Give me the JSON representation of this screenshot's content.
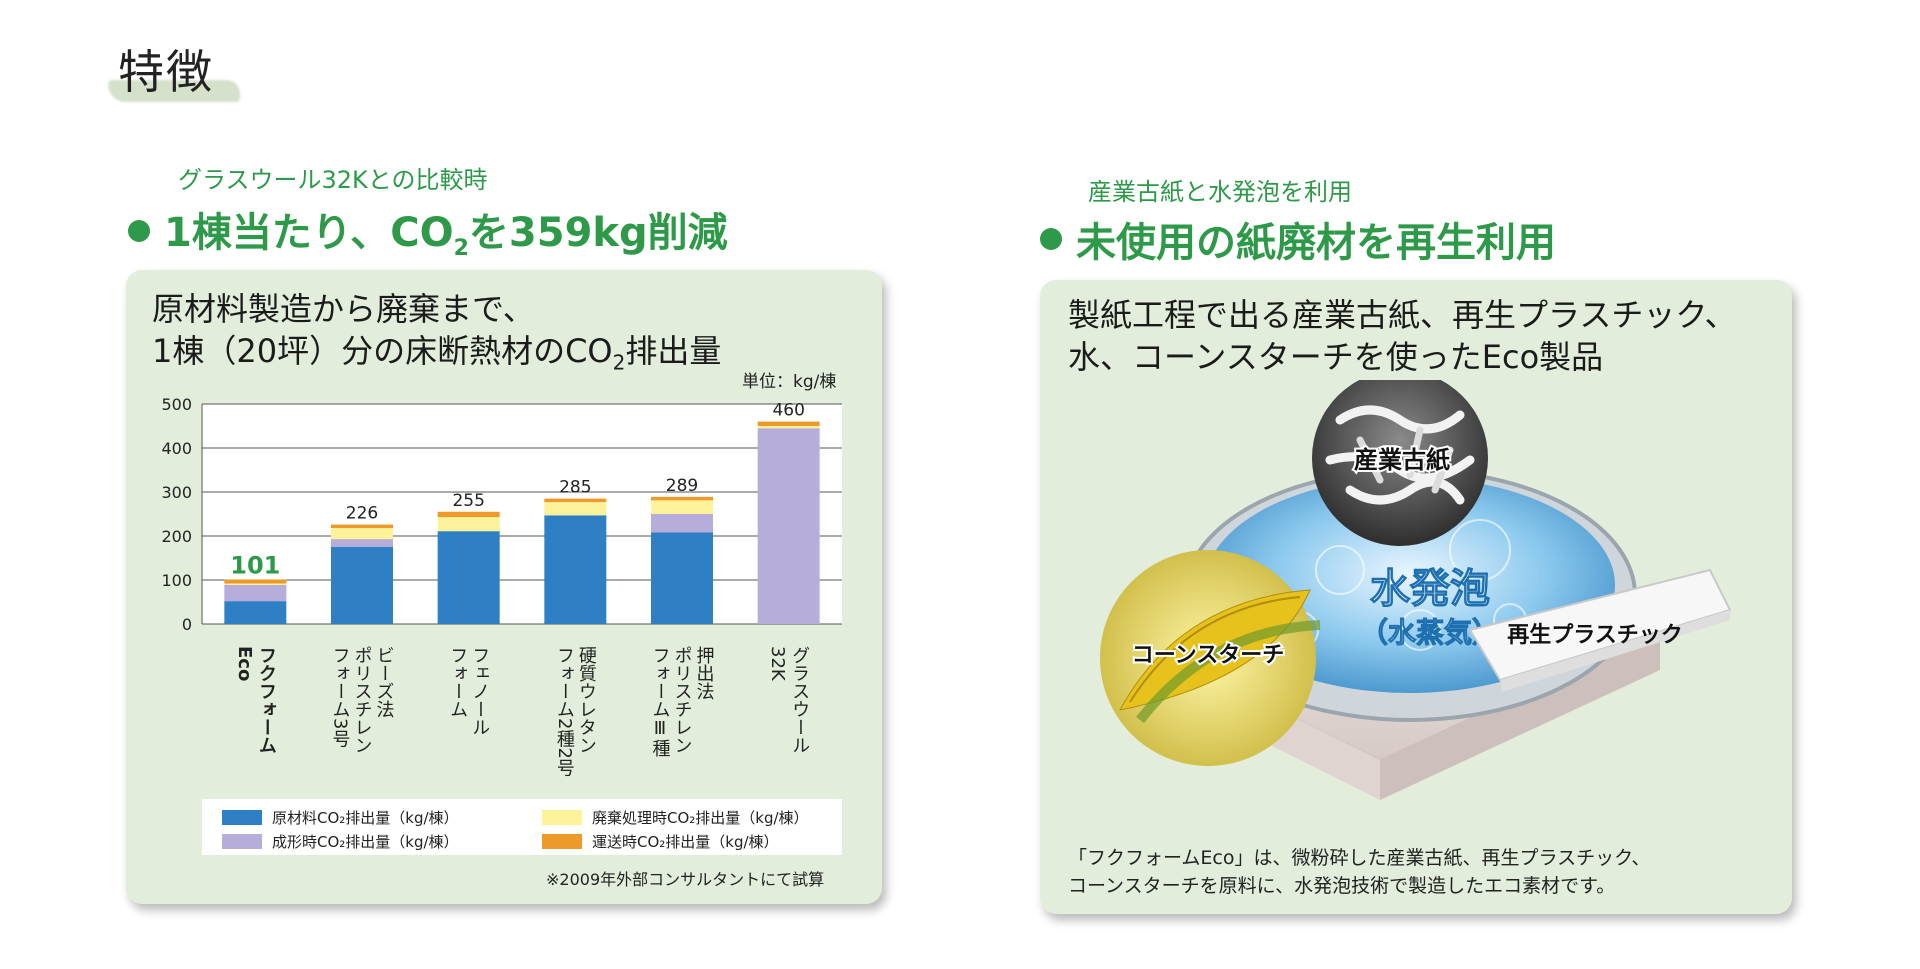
{
  "page_title": "特徴",
  "left": {
    "subhead": "グラスウール32Kとの比較時",
    "headline_pre": "1棟当たり、CO",
    "headline_sub": "2",
    "headline_post": "を359kg削減",
    "panel_line1": "原材料製造から廃棄まで、",
    "panel_line2_pre": "1棟（20坪）分の床断熱材のCO",
    "panel_line2_sub": "2",
    "panel_line2_post": "排出量",
    "unit": "単位：kg/棟",
    "note": "※2009年外部コンサルタントにて試算"
  },
  "right": {
    "subhead": "産業古紙と水発泡を利用",
    "headline": "未使用の紙廃材を再生利用",
    "panel_line1": "製紙工程で出る産業古紙、再生プラスチック、",
    "panel_line2": "水、コーンスターチを使ったEco製品",
    "label_paper": "産業古紙",
    "label_water": "水発泡",
    "label_steam": "（水蒸気）",
    "label_corn": "コーンスターチ",
    "label_plastic": "再生プラスチック",
    "footer_line1": "「フクフォームEco」は、微粉砕した産業古紙、再生プラスチック、",
    "footer_line2": "コーンスターチを原料に、水発泡技術で製造したエコ素材です。"
  },
  "colors": {
    "brand_green": "#2e9a49",
    "panel_bg": "#e2eedb",
    "raw": "#2f7fc4",
    "molding": "#b7addb",
    "disposal": "#fbf29a",
    "transport": "#ee9a2a"
  },
  "chart_data": {
    "type": "bar",
    "stacked": true,
    "categories": [
      "フクフォーム Eco",
      "ビーズ法 ポリスチレン フォーム3号",
      "フェノール フォーム",
      "硬質ウレタン フォーム2種2号",
      "押出法 ポリスチレン フォームⅢ種",
      "グラスウール 32K"
    ],
    "category_lines": [
      [
        "フクフォーム",
        "Eco"
      ],
      [
        "ビーズ法",
        "ポリスチレン",
        "フォーム3号"
      ],
      [
        "フェノール",
        "フォーム"
      ],
      [
        "硬質ウレタン",
        "フォーム2種2号"
      ],
      [
        "押出法",
        "ポリスチレン",
        "フォームⅢ種"
      ],
      [
        "グラスウール",
        "32K"
      ]
    ],
    "totals": [
      101,
      226,
      255,
      285,
      289,
      460
    ],
    "series": [
      {
        "name": "原材料CO₂排出量（kg/棟）",
        "color": "#2f7fc4",
        "values": [
          52,
          175,
          211,
          247,
          208,
          0
        ]
      },
      {
        "name": "成形時CO₂排出量（kg/棟）",
        "color": "#b7addb",
        "values": [
          37,
          18,
          0,
          0,
          42,
          445
        ]
      },
      {
        "name": "廃棄処理時CO₂排出量（kg/棟）",
        "color": "#fbf29a",
        "values": [
          3,
          25,
          32,
          30,
          31,
          5
        ]
      },
      {
        "name": "運送時CO₂排出量（kg/棟）",
        "color": "#ee9a2a",
        "values": [
          9,
          8,
          12,
          8,
          8,
          10
        ]
      }
    ],
    "legend_order": [
      0,
      2,
      1,
      3
    ],
    "ylim": [
      0,
      500
    ],
    "yticks": [
      0,
      100,
      200,
      300,
      400,
      500
    ],
    "grid": true,
    "highlight_first": true,
    "highlight_color": "#2e9a49"
  }
}
